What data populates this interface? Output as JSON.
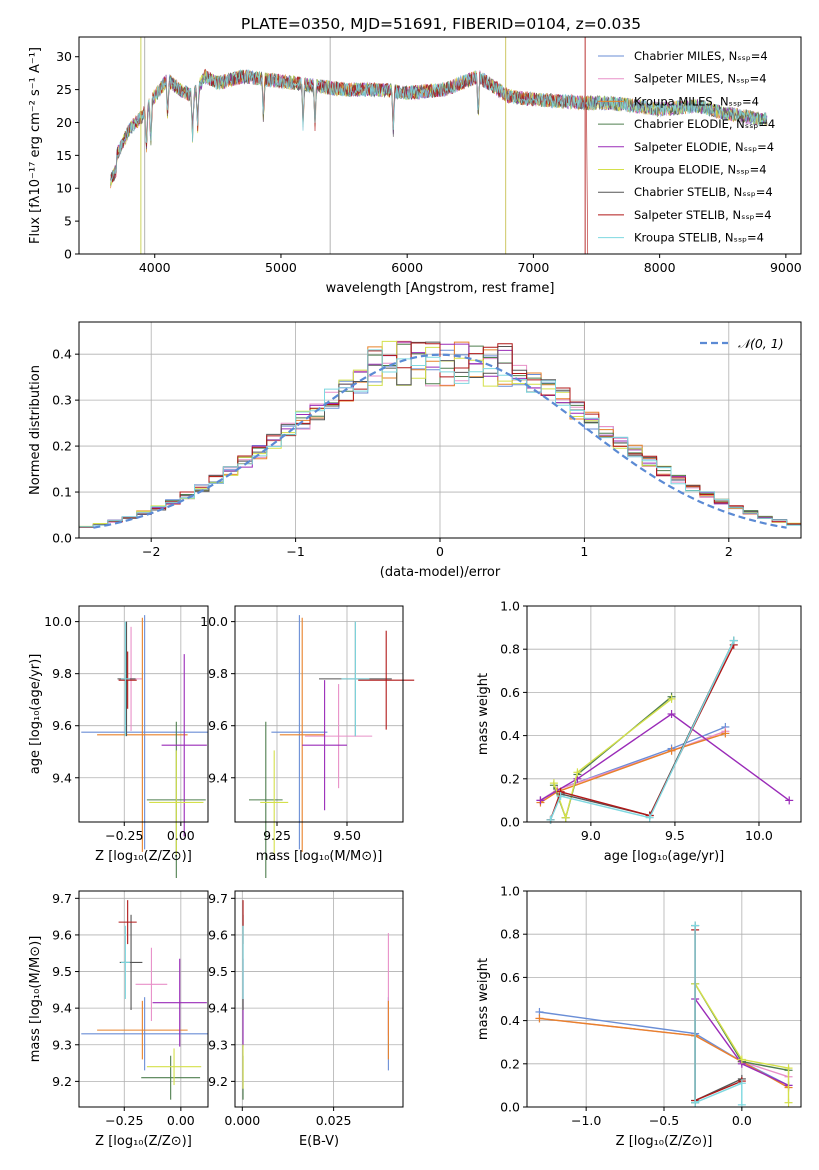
{
  "figure": {
    "title": "PLATE=0350, MJD=51691, FIBERID=0104, z=0.035",
    "colors": {
      "Chabrier MILES": "#6a8ed6",
      "Salpeter MILES": "#e890c8",
      "Kroupa MILES": "#e8822a",
      "Chabrier ELODIE": "#4f7f4f",
      "Salpeter ELODIE": "#9a2bb8",
      "Kroupa ELODIE": "#d4e04a",
      "Chabrier STELIB": "#555555",
      "Salpeter STELIB": "#b01818",
      "Kroupa STELIB": "#7ed8e0"
    }
  },
  "chart_data": [
    {
      "id": "spectrum",
      "type": "line",
      "xlabel": "wavelength [Angstrom, rest frame]",
      "ylabel": "Flux [fλ10⁻¹⁷ erg cm⁻² s⁻¹ A⁻¹]",
      "xlim": [
        3400,
        9120
      ],
      "ylim": [
        0,
        33
      ],
      "xticks": [
        4000,
        5000,
        6000,
        7000,
        8000,
        9000
      ],
      "yticks": [
        0,
        5,
        10,
        15,
        20,
        25,
        30
      ],
      "legend": "top-right",
      "series": [
        {
          "name": "Chabrier MILES, Nₛₛₚ=4"
        },
        {
          "name": "Salpeter MILES, Nₛₛₚ=4"
        },
        {
          "name": "Kroupa MILES, Nₛₛₚ=4"
        },
        {
          "name": "Chabrier ELODIE, Nₛₛₚ=4"
        },
        {
          "name": "Salpeter ELODIE, Nₛₛₚ=4"
        },
        {
          "name": "Kroupa ELODIE, Nₛₛₚ=4"
        },
        {
          "name": "Chabrier STELIB, Nₛₛₚ=4"
        },
        {
          "name": "Salpeter STELIB, Nₛₛₚ=4"
        },
        {
          "name": "Kroupa STELIB, Nₛₛₚ=4"
        }
      ],
      "data_envelope": {
        "x": [
          3650,
          3700,
          3800,
          3900,
          4000,
          4100,
          4200,
          4300,
          4400,
          4500,
          4700,
          4900,
          5100,
          5300,
          5500,
          5800,
          6000,
          6300,
          6560,
          6800,
          7000,
          7400,
          7600,
          8000,
          8300,
          8500,
          8800
        ],
        "y": [
          13,
          15,
          19,
          21,
          24,
          26.5,
          25,
          24,
          27,
          26,
          27,
          26.5,
          26,
          25.5,
          25,
          25,
          24.5,
          25,
          27,
          24,
          23.5,
          23,
          23,
          22,
          22.5,
          21.5,
          20.5
        ]
      },
      "spikes_x": [
        3890,
        5390,
        6780,
        7410,
        3920
      ]
    },
    {
      "id": "residuals",
      "type": "line",
      "xlabel": "(data-model)/error",
      "ylabel": "Normed distribution",
      "xlim": [
        -2.5,
        2.5
      ],
      "ylim": [
        0,
        0.47
      ],
      "xticks": [
        -2,
        -1,
        0,
        1,
        2
      ],
      "yticks": [
        0.0,
        0.1,
        0.2,
        0.3,
        0.4
      ],
      "legend": "top-right",
      "reference_curve": {
        "name": "𝒩(0, 1)",
        "mean": 0,
        "sigma": 1
      },
      "histogram_bin_width": 0.1
    },
    {
      "id": "age-vs-Z",
      "type": "scatter",
      "xlabel": "Z [log₁₀(Z/Z⊙)]",
      "ylabel": "age  [log₁₀(age/yr)]",
      "xlim": [
        -0.45,
        0.12
      ],
      "ylim": [
        9.23,
        10.06
      ],
      "xticks": [
        -0.25,
        0.0
      ],
      "yticks": [
        9.4,
        9.6,
        9.8,
        10.0
      ],
      "points": [
        {
          "series": "Chabrier MILES",
          "x": -0.16,
          "y": 9.575,
          "xerr": 0.28,
          "yerr": 0.45
        },
        {
          "series": "Salpeter MILES",
          "x": -0.22,
          "y": 9.78,
          "xerr": 0.05,
          "yerr": 0.2
        },
        {
          "series": "Kroupa MILES",
          "x": -0.17,
          "y": 9.565,
          "xerr": 0.2,
          "yerr": 0.45
        },
        {
          "series": "Chabrier ELODIE",
          "x": -0.02,
          "y": 9.315,
          "xerr": 0.13,
          "yerr": 0.3
        },
        {
          "series": "Salpeter ELODIE",
          "x": 0.015,
          "y": 9.525,
          "xerr": 0.1,
          "yerr": 0.35
        },
        {
          "series": "Kroupa ELODIE",
          "x": -0.02,
          "y": 9.305,
          "xerr": 0.12,
          "yerr": 0.2
        },
        {
          "series": "Chabrier STELIB",
          "x": -0.24,
          "y": 9.78,
          "xerr": 0.04,
          "yerr": 0.22
        },
        {
          "series": "Salpeter STELIB",
          "x": -0.235,
          "y": 9.775,
          "xerr": 0.04,
          "yerr": 0.11
        },
        {
          "series": "Kroupa STELIB",
          "x": -0.245,
          "y": 9.78,
          "xerr": 0.02,
          "yerr": 0.22
        }
      ]
    },
    {
      "id": "age-vs-mass",
      "type": "scatter",
      "xlabel": "mass [log₁₀(M/M⊙)]",
      "ylabel": "",
      "xlim": [
        9.1,
        9.7
      ],
      "ylim": [
        9.23,
        10.06
      ],
      "xticks": [
        9.25,
        9.5
      ],
      "yticks": [
        9.4,
        9.6,
        9.8,
        10.0
      ],
      "points": [
        {
          "series": "Chabrier MILES",
          "x": 9.33,
          "y": 9.575,
          "xerr": 0.1,
          "yerr": 0.45
        },
        {
          "series": "Salpeter MILES",
          "x": 9.47,
          "y": 9.56,
          "xerr": 0.12,
          "yerr": 0.2
        },
        {
          "series": "Kroupa MILES",
          "x": 9.34,
          "y": 9.565,
          "xerr": 0.08,
          "yerr": 0.45
        },
        {
          "series": "Chabrier ELODIE",
          "x": 9.21,
          "y": 9.315,
          "xerr": 0.06,
          "yerr": 0.3
        },
        {
          "series": "Salpeter ELODIE",
          "x": 9.42,
          "y": 9.525,
          "xerr": 0.08,
          "yerr": 0.25
        },
        {
          "series": "Kroupa ELODIE",
          "x": 9.24,
          "y": 9.305,
          "xerr": 0.05,
          "yerr": 0.2
        },
        {
          "series": "Chabrier STELIB",
          "x": 9.53,
          "y": 9.78,
          "xerr": 0.13,
          "yerr": 0.22
        },
        {
          "series": "Salpeter STELIB",
          "x": 9.64,
          "y": 9.775,
          "xerr": 0.1,
          "yerr": 0.19
        },
        {
          "series": "Kroupa STELIB",
          "x": 9.53,
          "y": 9.78,
          "xerr": 0.05,
          "yerr": 0.22
        }
      ]
    },
    {
      "id": "weight-vs-age",
      "type": "line",
      "xlabel": "age  [log₁₀(age/yr)]",
      "ylabel": "mass weight",
      "xlim": [
        8.62,
        10.25
      ],
      "ylim": [
        0,
        1.0
      ],
      "xticks": [
        9.0,
        9.5,
        10.0
      ],
      "yticks": [
        0.0,
        0.2,
        0.4,
        0.6,
        0.8,
        1.0
      ],
      "series": [
        {
          "series": "Chabrier MILES",
          "x": [
            8.7,
            8.8,
            9.48,
            9.8
          ],
          "y": [
            0.1,
            0.15,
            0.34,
            0.44
          ]
        },
        {
          "series": "Salpeter MILES",
          "x": [
            8.7,
            8.8,
            9.48,
            9.8
          ],
          "y": [
            0.1,
            0.15,
            0.33,
            0.42
          ]
        },
        {
          "series": "Kroupa MILES",
          "x": [
            8.7,
            8.8,
            9.48,
            9.8
          ],
          "y": [
            0.09,
            0.14,
            0.33,
            0.41
          ]
        },
        {
          "series": "Chabrier ELODIE",
          "x": [
            8.78,
            8.85,
            8.92,
            9.48
          ],
          "y": [
            0.17,
            0.02,
            0.22,
            0.58
          ]
        },
        {
          "series": "Salpeter ELODIE",
          "x": [
            8.7,
            8.92,
            9.48,
            10.18
          ],
          "y": [
            0.1,
            0.2,
            0.5,
            0.1
          ]
        },
        {
          "series": "Kroupa ELODIE",
          "x": [
            8.78,
            8.85,
            8.92,
            9.48
          ],
          "y": [
            0.18,
            0.02,
            0.23,
            0.57
          ]
        },
        {
          "series": "Chabrier STELIB",
          "x": [
            8.76,
            8.82,
            9.35,
            9.85
          ],
          "y": [
            0.01,
            0.13,
            0.03,
            0.84
          ]
        },
        {
          "series": "Salpeter STELIB",
          "x": [
            8.76,
            8.82,
            9.35,
            9.85
          ],
          "y": [
            0.01,
            0.14,
            0.03,
            0.82
          ]
        },
        {
          "series": "Kroupa STELIB",
          "x": [
            8.76,
            8.82,
            9.35,
            9.85
          ],
          "y": [
            0.01,
            0.12,
            0.02,
            0.84
          ]
        }
      ]
    },
    {
      "id": "mass-vs-Z",
      "type": "scatter",
      "xlabel": "Z [log₁₀(Z/Z⊙)]",
      "ylabel": "mass [log₁₀(M/M⊙)]",
      "xlim": [
        -0.45,
        0.12
      ],
      "ylim": [
        9.13,
        9.72
      ],
      "xticks": [
        -0.25,
        0.0
      ],
      "yticks": [
        9.2,
        9.3,
        9.4,
        9.5,
        9.6,
        9.7
      ],
      "points": [
        {
          "series": "Chabrier MILES",
          "x": -0.16,
          "y": 9.33,
          "xerr": 0.28,
          "yerr": 0.1
        },
        {
          "series": "Salpeter MILES",
          "x": -0.13,
          "y": 9.465,
          "xerr": 0.07,
          "yerr": 0.1
        },
        {
          "series": "Kroupa MILES",
          "x": -0.17,
          "y": 9.34,
          "xerr": 0.2,
          "yerr": 0.08
        },
        {
          "series": "Chabrier ELODIE",
          "x": -0.045,
          "y": 9.21,
          "xerr": 0.13,
          "yerr": 0.06
        },
        {
          "series": "Salpeter ELODIE",
          "x": -0.005,
          "y": 9.415,
          "xerr": 0.12,
          "yerr": 0.12
        },
        {
          "series": "Kroupa ELODIE",
          "x": -0.03,
          "y": 9.24,
          "xerr": 0.12,
          "yerr": 0.05
        },
        {
          "series": "Chabrier STELIB",
          "x": -0.22,
          "y": 9.525,
          "xerr": 0.05,
          "yerr": 0.13
        },
        {
          "series": "Salpeter STELIB",
          "x": -0.235,
          "y": 9.635,
          "xerr": 0.04,
          "yerr": 0.06
        },
        {
          "series": "Kroupa STELIB",
          "x": -0.245,
          "y": 9.525,
          "xerr": 0.02,
          "yerr": 0.1
        }
      ]
    },
    {
      "id": "mass-vs-EBV",
      "type": "scatter",
      "xlabel": "E(B-V)",
      "ylabel": "",
      "xlim": [
        -0.002,
        0.044
      ],
      "ylim": [
        9.13,
        9.72
      ],
      "xticks": [
        0.0,
        0.025
      ],
      "xticklabels": [
        "0.000",
        "0.025"
      ],
      "yticks": [
        9.2,
        9.3,
        9.4,
        9.5,
        9.6,
        9.7
      ],
      "points": [
        {
          "series": "Chabrier MILES",
          "x": 0.04,
          "y": 9.33,
          "xerr": 0,
          "yerr": 0.1
        },
        {
          "series": "Salpeter MILES",
          "x": 0.04,
          "y": 9.465,
          "xerr": 0,
          "yerr": 0.14
        },
        {
          "series": "Kroupa MILES",
          "x": 0.04,
          "y": 9.34,
          "xerr": 0,
          "yerr": 0.08
        },
        {
          "series": "Chabrier ELODIE",
          "x": 0.0002,
          "y": 9.21,
          "xerr": 0,
          "yerr": 0.06
        },
        {
          "series": "Salpeter ELODIE",
          "x": 0.0002,
          "y": 9.415,
          "xerr": 0,
          "yerr": 0.12
        },
        {
          "series": "Kroupa ELODIE",
          "x": 0.0002,
          "y": 9.24,
          "xerr": 0,
          "yerr": 0.06
        },
        {
          "series": "Chabrier STELIB",
          "x": 0.0002,
          "y": 9.525,
          "xerr": 0,
          "yerr": 0.13
        },
        {
          "series": "Salpeter STELIB",
          "x": 0.0002,
          "y": 9.635,
          "xerr": 0,
          "yerr": 0.06
        },
        {
          "series": "Kroupa STELIB",
          "x": 0.0002,
          "y": 9.525,
          "xerr": 0,
          "yerr": 0.1
        }
      ]
    },
    {
      "id": "weight-vs-Z",
      "type": "line",
      "xlabel": "Z [log₁₀(Z/Z⊙)]",
      "ylabel": "mass weight",
      "xlim": [
        -1.38,
        0.38
      ],
      "ylim": [
        0,
        1.0
      ],
      "xticks": [
        -1.0,
        -0.5,
        0.0
      ],
      "yticks": [
        0.0,
        0.2,
        0.4,
        0.6,
        0.8,
        1.0
      ],
      "series": [
        {
          "series": "Chabrier MILES",
          "x": [
            -1.3,
            -0.3,
            0.0,
            0.3
          ],
          "y": [
            0.44,
            0.34,
            0.21,
            0.1
          ]
        },
        {
          "series": "Salpeter MILES",
          "x": [
            -1.3,
            -0.3,
            0.0,
            0.3
          ],
          "y": [
            0.41,
            0.33,
            0.21,
            0.14
          ]
        },
        {
          "series": "Kroupa MILES",
          "x": [
            -1.3,
            -0.3,
            0.0,
            0.3
          ],
          "y": [
            0.41,
            0.33,
            0.21,
            0.09
          ]
        },
        {
          "series": "Chabrier ELODIE",
          "x": [
            -0.3,
            -0.3,
            0.0,
            0.3
          ],
          "y": [
            0.02,
            0.57,
            0.21,
            0.17
          ]
        },
        {
          "series": "Salpeter ELODIE",
          "x": [
            -0.3,
            0.0,
            0.3
          ],
          "y": [
            0.5,
            0.2,
            0.1
          ]
        },
        {
          "series": "Kroupa ELODIE",
          "x": [
            -0.3,
            0.0,
            0.3,
            0.3
          ],
          "y": [
            0.57,
            0.22,
            0.18,
            0.02
          ]
        },
        {
          "series": "Chabrier STELIB",
          "x": [
            -0.3,
            -0.3,
            0.0
          ],
          "y": [
            0.84,
            0.03,
            0.13
          ]
        },
        {
          "series": "Salpeter STELIB",
          "x": [
            -0.3,
            -0.3,
            0.0
          ],
          "y": [
            0.82,
            0.03,
            0.12
          ]
        },
        {
          "series": "Kroupa STELIB",
          "x": [
            -0.3,
            -0.3,
            0.0,
            0.0
          ],
          "y": [
            0.84,
            0.02,
            0.11,
            0.01
          ]
        }
      ]
    }
  ]
}
